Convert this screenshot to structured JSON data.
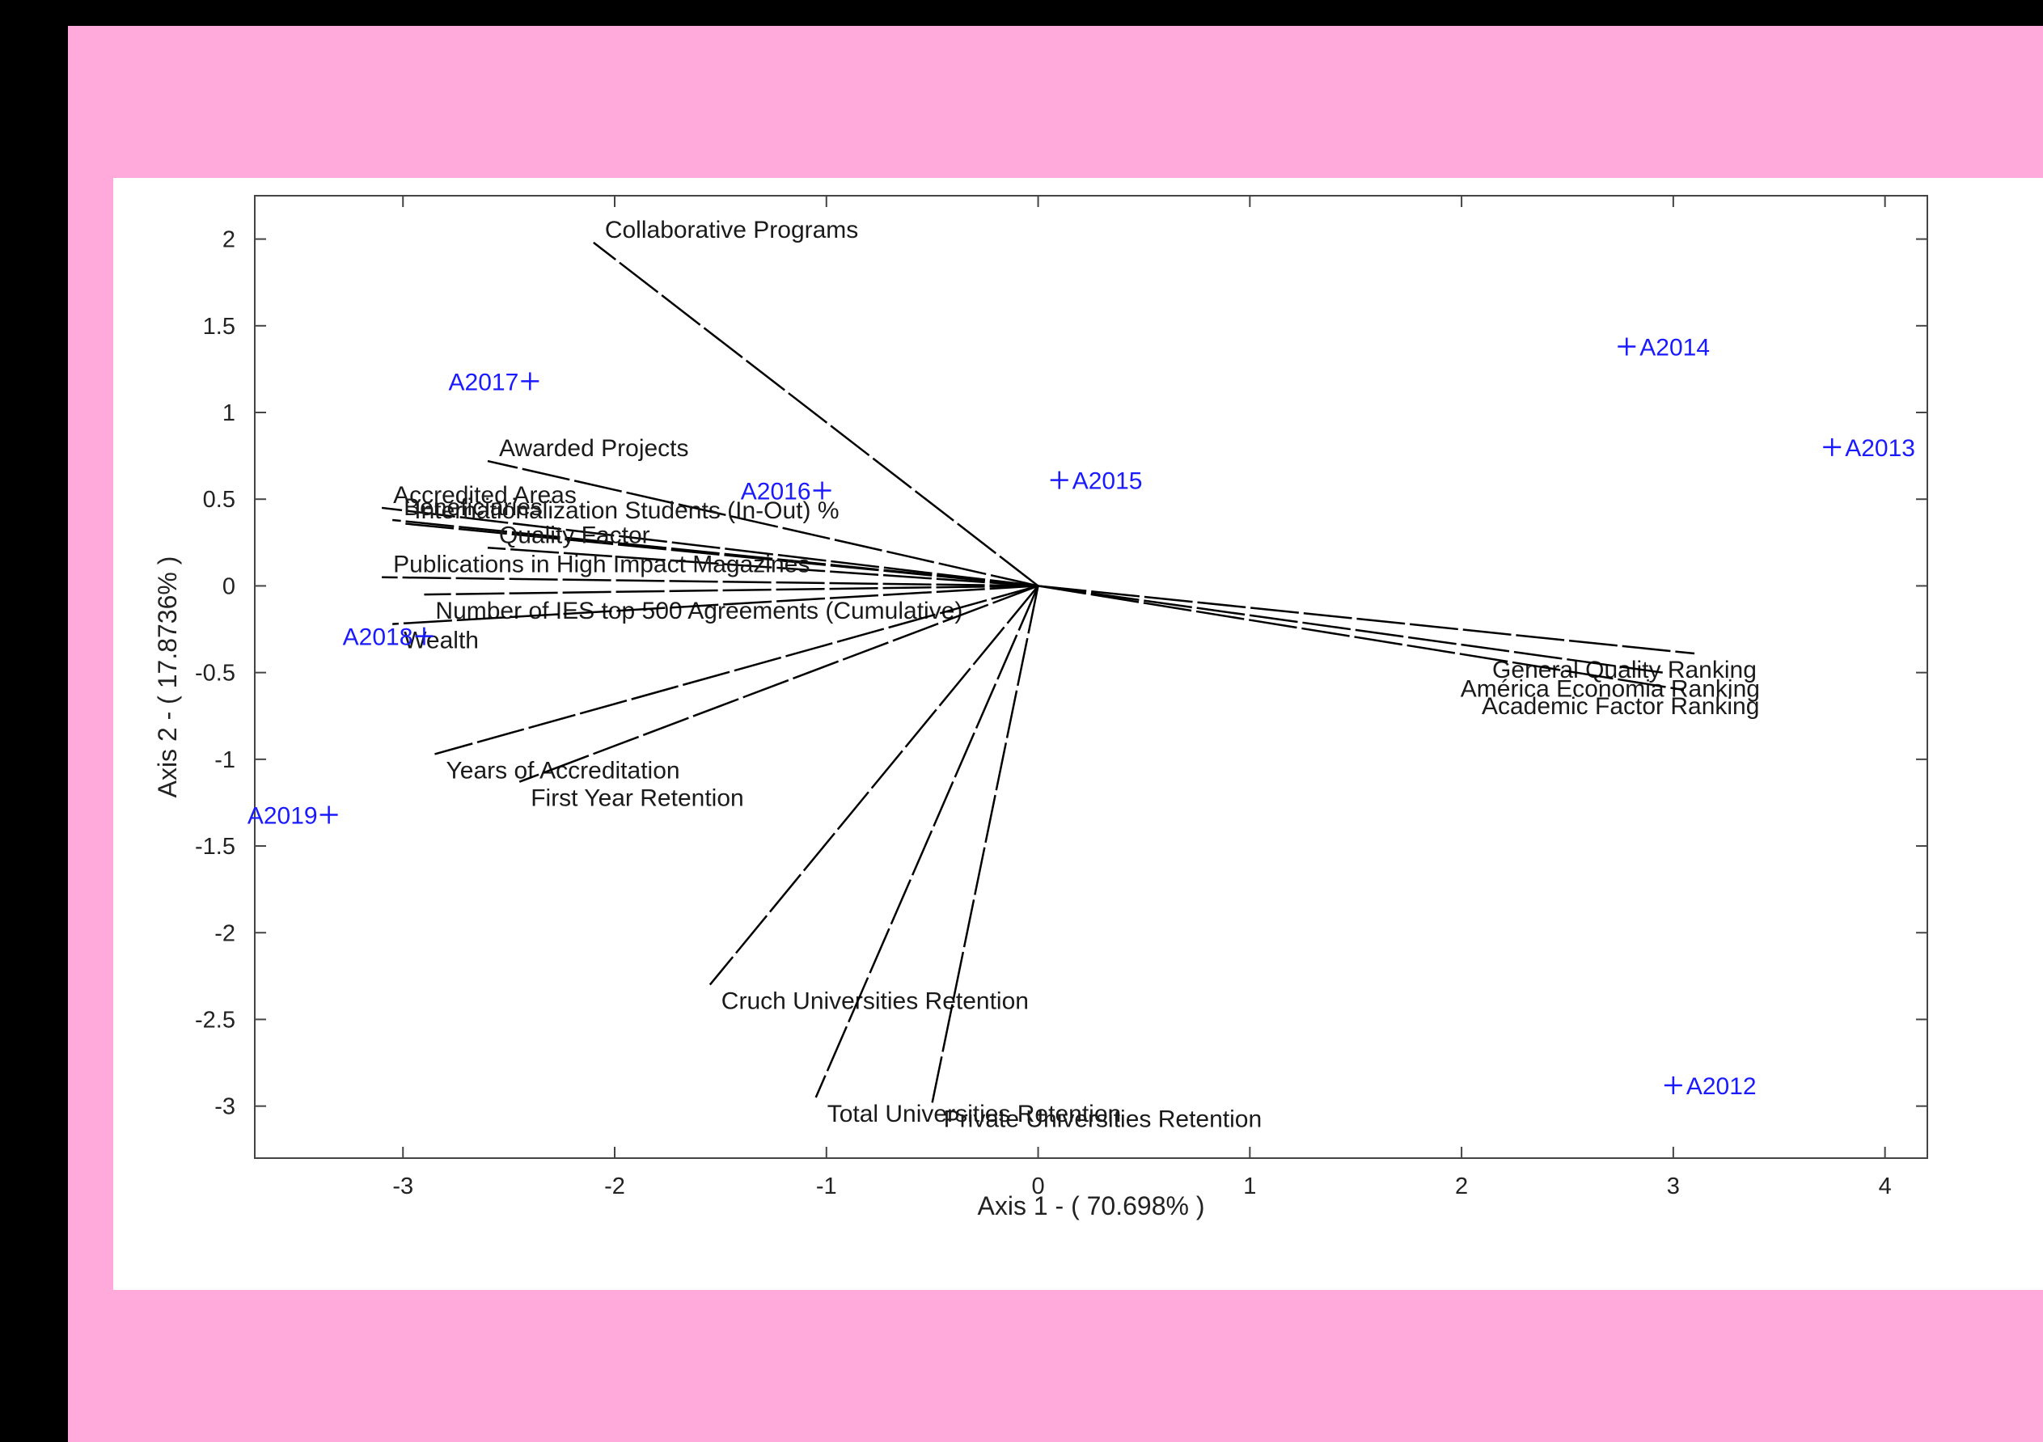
{
  "colors": {
    "frame_border": "#000000",
    "frame_background": "#FFAADA",
    "plot_background": "#FFFFFF",
    "variable_vector": "#000000",
    "observation_marker": "#1A1AFF"
  },
  "chart_data": {
    "type": "scatter",
    "subtype": "biplot",
    "title": "",
    "xlabel": "Axis 1 - ( 70.698% )",
    "ylabel": "Axis 2 - ( 17.8736% )",
    "xlim": [
      -3.7,
      4.2
    ],
    "ylim": [
      -3.3,
      2.25
    ],
    "xticks": [
      -3,
      -2,
      -1,
      0,
      1,
      2,
      3,
      4
    ],
    "yticks": [
      2,
      1.5,
      1,
      0.5,
      0,
      -0.5,
      -1,
      -1.5,
      -2,
      -2.5,
      -3
    ],
    "xtick_labels": [
      "-3",
      "-2",
      "-1",
      "0",
      "1",
      "2",
      "3",
      "4"
    ],
    "ytick_labels": [
      "2",
      "1.5",
      "1",
      "0.5",
      "0",
      "-0.5",
      "-1",
      "-1.5",
      "-2",
      "-2.5",
      "-3"
    ],
    "grid": false,
    "variables": [
      {
        "name": "Collaborative Programs",
        "x": -2.1,
        "y": 1.98
      },
      {
        "name": "Awarded Projects",
        "x": -2.6,
        "y": 0.72
      },
      {
        "name": "Accredited Areas",
        "x": -3.1,
        "y": 0.45
      },
      {
        "name": "Beneficiaries",
        "x": -3.05,
        "y": 0.38
      },
      {
        "name": "Internationalization Students (In-Out) %",
        "x": -3.0,
        "y": 0.36
      },
      {
        "name": "Quality Factor",
        "x": -2.6,
        "y": 0.22
      },
      {
        "name": "Publications in High Impact Magazines",
        "x": -3.1,
        "y": 0.05
      },
      {
        "name": "Number of IES top 500 Agreements (Cumulative)",
        "x": -2.9,
        "y": -0.05
      },
      {
        "name": "Wealth",
        "x": -3.05,
        "y": -0.22
      },
      {
        "name": "Years of Accreditation",
        "x": -2.85,
        "y": -0.97
      },
      {
        "name": "First Year Retention",
        "x": -2.45,
        "y": -1.13
      },
      {
        "name": "Cruch Universities Retention",
        "x": -1.55,
        "y": -2.3
      },
      {
        "name": "Total Universities Retention",
        "x": -1.05,
        "y": -2.95
      },
      {
        "name": "Private Universities Retention",
        "x": -0.5,
        "y": -2.98
      },
      {
        "name": "General Quality Ranking",
        "x": 3.1,
        "y": -0.39
      },
      {
        "name": "América Economia Ranking",
        "x": 2.95,
        "y": -0.5
      },
      {
        "name": "Academic Factor Ranking",
        "x": 3.05,
        "y": -0.6
      }
    ],
    "observations": [
      {
        "name": "A2012",
        "x": 3.0,
        "y": -2.88
      },
      {
        "name": "A2013",
        "x": 3.75,
        "y": 0.8
      },
      {
        "name": "A2014",
        "x": 2.78,
        "y": 1.38
      },
      {
        "name": "A2015",
        "x": 0.1,
        "y": 0.61
      },
      {
        "name": "A2016",
        "x": -1.02,
        "y": 0.55
      },
      {
        "name": "A2017",
        "x": -2.4,
        "y": 1.18
      },
      {
        "name": "A2018",
        "x": -2.9,
        "y": -0.29
      },
      {
        "name": "A2019",
        "x": -3.35,
        "y": -1.32
      }
    ]
  }
}
